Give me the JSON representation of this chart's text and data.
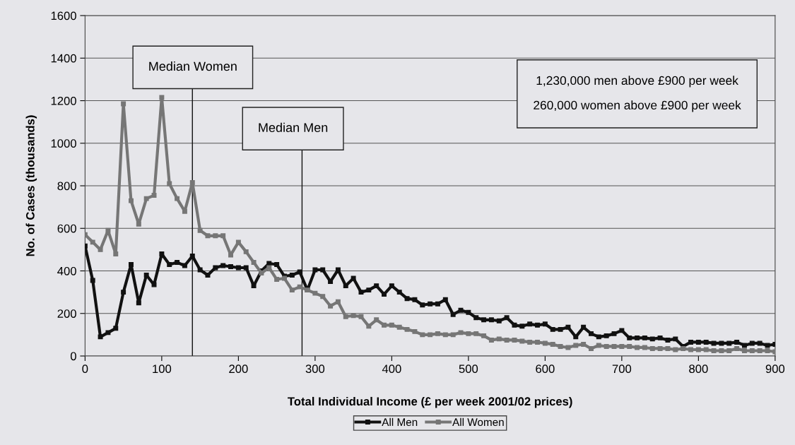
{
  "chart_data": {
    "type": "line",
    "xlabel": "Total Individual Income (£ per week 2001/02 prices)",
    "ylabel": "No. of Cases (thousands)",
    "x": [
      0,
      10,
      20,
      30,
      40,
      50,
      60,
      70,
      80,
      90,
      100,
      110,
      120,
      130,
      140,
      150,
      160,
      170,
      180,
      190,
      200,
      210,
      220,
      230,
      240,
      250,
      260,
      270,
      280,
      290,
      300,
      310,
      320,
      330,
      340,
      350,
      360,
      370,
      380,
      390,
      400,
      410,
      420,
      430,
      440,
      450,
      460,
      470,
      480,
      490,
      500,
      510,
      520,
      530,
      540,
      550,
      560,
      570,
      580,
      590,
      600,
      610,
      620,
      630,
      640,
      650,
      660,
      670,
      680,
      690,
      700,
      710,
      720,
      730,
      740,
      750,
      760,
      770,
      780,
      790,
      800,
      810,
      820,
      830,
      840,
      850,
      860,
      870,
      880,
      890,
      900
    ],
    "series": [
      {
        "name": "All Men",
        "color": "#111111",
        "values": [
          517,
          355,
          90,
          110,
          130,
          300,
          430,
          250,
          380,
          335,
          480,
          430,
          440,
          425,
          470,
          405,
          380,
          415,
          425,
          420,
          415,
          415,
          330,
          400,
          435,
          430,
          375,
          380,
          395,
          310,
          405,
          405,
          350,
          405,
          330,
          365,
          300,
          310,
          330,
          290,
          330,
          300,
          270,
          265,
          240,
          245,
          245,
          265,
          195,
          215,
          205,
          180,
          170,
          170,
          165,
          180,
          145,
          140,
          150,
          145,
          150,
          125,
          125,
          135,
          90,
          135,
          105,
          90,
          95,
          105,
          120,
          85,
          85,
          85,
          80,
          85,
          75,
          80,
          45,
          65,
          65,
          65,
          60,
          60,
          60,
          65,
          50,
          60,
          60,
          50,
          55
        ]
      },
      {
        "name": "All Women",
        "color": "#767676",
        "values": [
          570,
          535,
          500,
          590,
          480,
          1185,
          730,
          620,
          740,
          755,
          1215,
          810,
          740,
          680,
          815,
          590,
          565,
          565,
          565,
          475,
          535,
          490,
          440,
          390,
          415,
          360,
          365,
          310,
          325,
          310,
          295,
          280,
          235,
          255,
          185,
          190,
          185,
          140,
          170,
          145,
          145,
          135,
          125,
          115,
          100,
          100,
          105,
          100,
          100,
          110,
          105,
          105,
          95,
          75,
          80,
          75,
          75,
          70,
          65,
          65,
          60,
          55,
          45,
          40,
          50,
          55,
          35,
          50,
          45,
          45,
          45,
          45,
          40,
          40,
          35,
          35,
          35,
          30,
          35,
          30,
          30,
          30,
          25,
          25,
          25,
          35,
          25,
          25,
          25,
          25,
          20
        ]
      }
    ],
    "ref_lines": [
      {
        "axis": "x",
        "value": 140,
        "label": "Median Women"
      },
      {
        "axis": "x",
        "value": 283,
        "label": "Median Men"
      }
    ],
    "annotations": [
      "1,230,000 men above £900 per week\n\n260,000 women above £900 per week"
    ],
    "xlim": [
      0,
      900
    ],
    "xticks": [
      0,
      100,
      200,
      300,
      400,
      500,
      600,
      700,
      800,
      900
    ],
    "ylim": [
      0,
      1600
    ],
    "yticks": [
      0,
      200,
      400,
      600,
      800,
      1000,
      1200,
      1400,
      1600
    ],
    "grid": "y",
    "legend": "bottom",
    "marker": "square",
    "line_style": "solid"
  }
}
